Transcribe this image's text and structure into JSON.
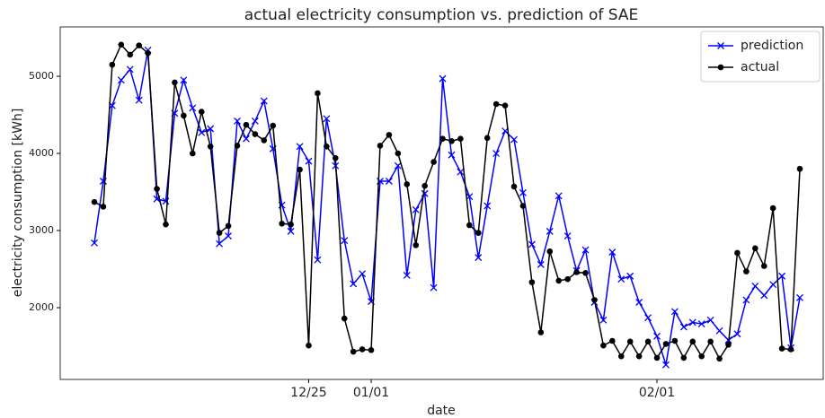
{
  "chart_data": {
    "type": "line",
    "title": "actual electricity consumption vs. prediction of SAE",
    "xlabel": "date",
    "ylabel": "electricity consumption [kWh]",
    "categories": [
      null,
      null,
      null,
      null,
      null,
      null,
      null,
      null,
      null,
      null,
      null,
      null,
      null,
      null,
      null,
      null,
      null,
      null,
      null,
      null,
      null,
      null,
      null,
      null,
      "12/25",
      null,
      null,
      null,
      null,
      null,
      null,
      "01/01",
      null,
      null,
      null,
      null,
      null,
      null,
      null,
      null,
      null,
      null,
      null,
      null,
      null,
      null,
      null,
      null,
      null,
      null,
      null,
      null,
      null,
      null,
      null,
      null,
      null,
      null,
      null,
      null,
      null,
      null,
      null,
      "02/01",
      null,
      null,
      null,
      null,
      null,
      null,
      null,
      null,
      null,
      null,
      null,
      null,
      null,
      null,
      null,
      null
    ],
    "series": [
      {
        "name": "prediction",
        "color": "#0000ff",
        "marker": "x",
        "values": [
          2840,
          3640,
          4620,
          4950,
          5090,
          4690,
          5340,
          3410,
          3380,
          4520,
          4950,
          4590,
          4270,
          4320,
          2830,
          2930,
          4420,
          4190,
          4420,
          4680,
          4060,
          3330,
          2990,
          4090,
          3900,
          2620,
          4450,
          3840,
          2870,
          2310,
          2440,
          2080,
          3640,
          3640,
          3840,
          2420,
          3270,
          3480,
          2260,
          4970,
          3980,
          3760,
          3440,
          2650,
          3320,
          4000,
          4290,
          4180,
          3490,
          2820,
          2560,
          2990,
          3450,
          2930,
          2480,
          2750,
          2070,
          1840,
          2720,
          2370,
          2410,
          2070,
          1870,
          1630,
          1260,
          1950,
          1750,
          1810,
          1790,
          1840,
          1700,
          1580,
          1660,
          2100,
          2280,
          2160,
          2300,
          2410,
          1480,
          2130
        ]
      },
      {
        "name": "actual",
        "color": "#000000",
        "marker": "o",
        "values": [
          3370,
          3310,
          5150,
          5410,
          5280,
          5400,
          5300,
          3540,
          3080,
          4920,
          4490,
          4000,
          4540,
          4090,
          2970,
          3060,
          4100,
          4370,
          4250,
          4170,
          4360,
          3090,
          3080,
          3790,
          1510,
          4780,
          4090,
          3940,
          1860,
          1430,
          1460,
          1450,
          4100,
          4240,
          4000,
          3600,
          2810,
          3580,
          3890,
          4190,
          4160,
          4190,
          3070,
          2970,
          4200,
          4640,
          4620,
          3570,
          3320,
          2330,
          1680,
          2730,
          2350,
          2370,
          2460,
          2450,
          2100,
          1510,
          1570,
          1370,
          1560,
          1370,
          1560,
          1350,
          1530,
          1570,
          1350,
          1560,
          1370,
          1560,
          1340,
          1520,
          2710,
          2470,
          2770,
          2540,
          3290,
          1470,
          1460,
          3800
        ]
      }
    ],
    "ylim": [
      1070,
      5640
    ],
    "yticks": [
      2000,
      3000,
      4000,
      5000
    ],
    "grid": false,
    "legend": "upper right"
  }
}
